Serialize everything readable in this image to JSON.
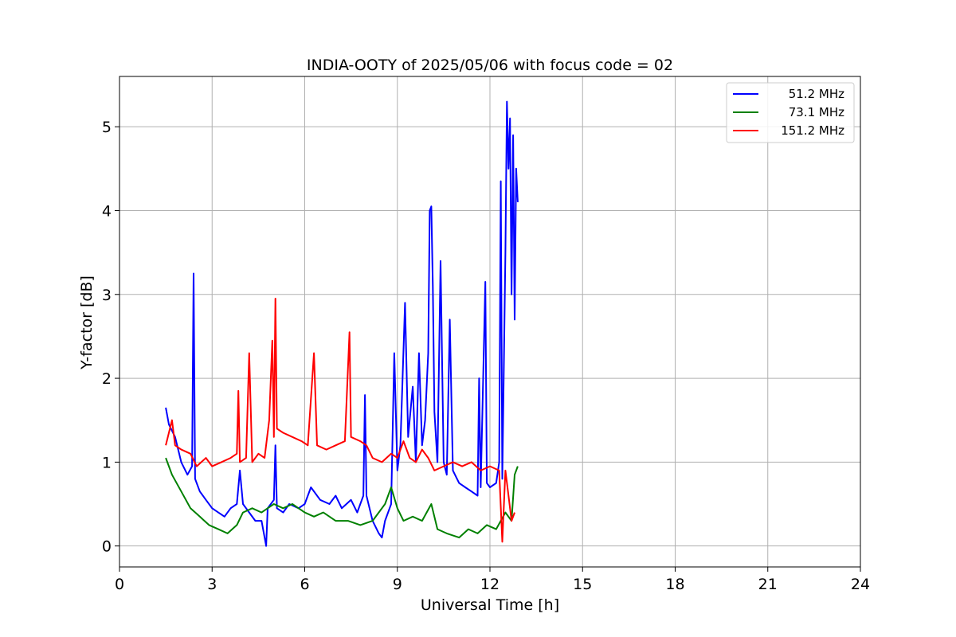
{
  "chart_data": {
    "type": "line",
    "title": "INDIA-OOTY of 2025/05/06 with focus code = 02",
    "xlabel": "Universal Time [h]",
    "ylabel": "Y-factor [dB]",
    "xlim": [
      0,
      24
    ],
    "ylim": [
      -0.25,
      5.6
    ],
    "xticks": [
      0,
      3,
      6,
      9,
      12,
      15,
      18,
      21,
      24
    ],
    "yticks": [
      0,
      1,
      2,
      3,
      4,
      5
    ],
    "grid": true,
    "legend_position": "top-right",
    "series": [
      {
        "name": "51.2 MHz",
        "color": "#0000ff",
        "points": [
          [
            1.5,
            1.65
          ],
          [
            1.6,
            1.45
          ],
          [
            1.8,
            1.3
          ],
          [
            2.0,
            1.0
          ],
          [
            2.2,
            0.85
          ],
          [
            2.35,
            0.95
          ],
          [
            2.4,
            3.25
          ],
          [
            2.45,
            0.8
          ],
          [
            2.6,
            0.65
          ],
          [
            2.8,
            0.55
          ],
          [
            3.0,
            0.45
          ],
          [
            3.2,
            0.4
          ],
          [
            3.4,
            0.35
          ],
          [
            3.6,
            0.45
          ],
          [
            3.8,
            0.5
          ],
          [
            3.9,
            0.9
          ],
          [
            4.0,
            0.5
          ],
          [
            4.2,
            0.4
          ],
          [
            4.4,
            0.3
          ],
          [
            4.6,
            0.3
          ],
          [
            4.75,
            0.0
          ],
          [
            4.8,
            0.45
          ],
          [
            5.0,
            0.55
          ],
          [
            5.05,
            1.2
          ],
          [
            5.1,
            0.45
          ],
          [
            5.3,
            0.4
          ],
          [
            5.5,
            0.5
          ],
          [
            5.8,
            0.45
          ],
          [
            6.0,
            0.5
          ],
          [
            6.2,
            0.7
          ],
          [
            6.5,
            0.55
          ],
          [
            6.8,
            0.5
          ],
          [
            7.0,
            0.6
          ],
          [
            7.2,
            0.45
          ],
          [
            7.5,
            0.55
          ],
          [
            7.7,
            0.4
          ],
          [
            7.9,
            0.6
          ],
          [
            7.95,
            1.8
          ],
          [
            8.0,
            0.6
          ],
          [
            8.2,
            0.3
          ],
          [
            8.4,
            0.15
          ],
          [
            8.5,
            0.1
          ],
          [
            8.6,
            0.3
          ],
          [
            8.8,
            0.5
          ],
          [
            8.9,
            2.3
          ],
          [
            9.0,
            0.9
          ],
          [
            9.1,
            1.2
          ],
          [
            9.25,
            2.9
          ],
          [
            9.35,
            1.3
          ],
          [
            9.5,
            1.9
          ],
          [
            9.6,
            1.0
          ],
          [
            9.7,
            2.3
          ],
          [
            9.8,
            1.2
          ],
          [
            9.9,
            1.5
          ],
          [
            10.0,
            2.3
          ],
          [
            10.05,
            4.0
          ],
          [
            10.1,
            4.05
          ],
          [
            10.15,
            3.1
          ],
          [
            10.2,
            1.6
          ],
          [
            10.3,
            1.0
          ],
          [
            10.4,
            3.4
          ],
          [
            10.5,
            1.0
          ],
          [
            10.6,
            0.85
          ],
          [
            10.7,
            2.7
          ],
          [
            10.8,
            0.9
          ],
          [
            11.0,
            0.75
          ],
          [
            11.2,
            0.7
          ],
          [
            11.4,
            0.65
          ],
          [
            11.6,
            0.6
          ],
          [
            11.65,
            2.0
          ],
          [
            11.7,
            0.7
          ],
          [
            11.85,
            3.15
          ],
          [
            11.9,
            0.75
          ],
          [
            12.0,
            0.7
          ],
          [
            12.2,
            0.75
          ],
          [
            12.3,
            1.0
          ],
          [
            12.35,
            4.35
          ],
          [
            12.4,
            0.8
          ],
          [
            12.5,
            3.5
          ],
          [
            12.55,
            5.3
          ],
          [
            12.6,
            4.5
          ],
          [
            12.65,
            5.1
          ],
          [
            12.7,
            3.0
          ],
          [
            12.75,
            4.9
          ],
          [
            12.8,
            2.7
          ],
          [
            12.85,
            4.5
          ],
          [
            12.9,
            4.1
          ]
        ]
      },
      {
        "name": "73.1 MHz",
        "color": "#008000",
        "points": [
          [
            1.5,
            1.05
          ],
          [
            1.7,
            0.85
          ],
          [
            2.0,
            0.65
          ],
          [
            2.3,
            0.45
          ],
          [
            2.6,
            0.35
          ],
          [
            2.9,
            0.25
          ],
          [
            3.2,
            0.2
          ],
          [
            3.5,
            0.15
          ],
          [
            3.8,
            0.25
          ],
          [
            4.0,
            0.4
          ],
          [
            4.3,
            0.45
          ],
          [
            4.6,
            0.4
          ],
          [
            5.0,
            0.5
          ],
          [
            5.3,
            0.45
          ],
          [
            5.6,
            0.5
          ],
          [
            6.0,
            0.4
          ],
          [
            6.3,
            0.35
          ],
          [
            6.6,
            0.4
          ],
          [
            7.0,
            0.3
          ],
          [
            7.4,
            0.3
          ],
          [
            7.8,
            0.25
          ],
          [
            8.2,
            0.3
          ],
          [
            8.6,
            0.5
          ],
          [
            8.8,
            0.7
          ],
          [
            9.0,
            0.45
          ],
          [
            9.2,
            0.3
          ],
          [
            9.5,
            0.35
          ],
          [
            9.8,
            0.3
          ],
          [
            10.1,
            0.5
          ],
          [
            10.3,
            0.2
          ],
          [
            10.6,
            0.15
          ],
          [
            11.0,
            0.1
          ],
          [
            11.3,
            0.2
          ],
          [
            11.6,
            0.15
          ],
          [
            11.9,
            0.25
          ],
          [
            12.2,
            0.2
          ],
          [
            12.5,
            0.4
          ],
          [
            12.7,
            0.3
          ],
          [
            12.8,
            0.85
          ],
          [
            12.9,
            0.95
          ]
        ]
      },
      {
        "name": "151.2 MHz",
        "color": "#ff0000",
        "points": [
          [
            1.5,
            1.2
          ],
          [
            1.6,
            1.35
          ],
          [
            1.7,
            1.5
          ],
          [
            1.8,
            1.2
          ],
          [
            2.0,
            1.15
          ],
          [
            2.3,
            1.1
          ],
          [
            2.5,
            0.95
          ],
          [
            2.8,
            1.05
          ],
          [
            3.0,
            0.95
          ],
          [
            3.3,
            1.0
          ],
          [
            3.6,
            1.05
          ],
          [
            3.8,
            1.1
          ],
          [
            3.85,
            1.85
          ],
          [
            3.9,
            1.0
          ],
          [
            4.1,
            1.05
          ],
          [
            4.2,
            2.3
          ],
          [
            4.3,
            1.0
          ],
          [
            4.5,
            1.1
          ],
          [
            4.7,
            1.05
          ],
          [
            4.85,
            1.5
          ],
          [
            4.95,
            2.45
          ],
          [
            5.0,
            1.3
          ],
          [
            5.05,
            2.95
          ],
          [
            5.1,
            1.4
          ],
          [
            5.3,
            1.35
          ],
          [
            5.6,
            1.3
          ],
          [
            5.9,
            1.25
          ],
          [
            6.1,
            1.2
          ],
          [
            6.3,
            2.3
          ],
          [
            6.4,
            1.2
          ],
          [
            6.7,
            1.15
          ],
          [
            7.0,
            1.2
          ],
          [
            7.3,
            1.25
          ],
          [
            7.45,
            2.55
          ],
          [
            7.5,
            1.3
          ],
          [
            7.8,
            1.25
          ],
          [
            8.0,
            1.2
          ],
          [
            8.2,
            1.05
          ],
          [
            8.5,
            1.0
          ],
          [
            8.8,
            1.1
          ],
          [
            9.0,
            1.05
          ],
          [
            9.2,
            1.25
          ],
          [
            9.4,
            1.05
          ],
          [
            9.6,
            1.0
          ],
          [
            9.8,
            1.15
          ],
          [
            10.0,
            1.05
          ],
          [
            10.2,
            0.9
          ],
          [
            10.5,
            0.95
          ],
          [
            10.8,
            1.0
          ],
          [
            11.1,
            0.95
          ],
          [
            11.4,
            1.0
          ],
          [
            11.7,
            0.9
          ],
          [
            12.0,
            0.95
          ],
          [
            12.3,
            0.9
          ],
          [
            12.4,
            0.05
          ],
          [
            12.5,
            0.9
          ],
          [
            12.6,
            0.6
          ],
          [
            12.7,
            0.3
          ],
          [
            12.8,
            0.4
          ]
        ]
      }
    ]
  }
}
